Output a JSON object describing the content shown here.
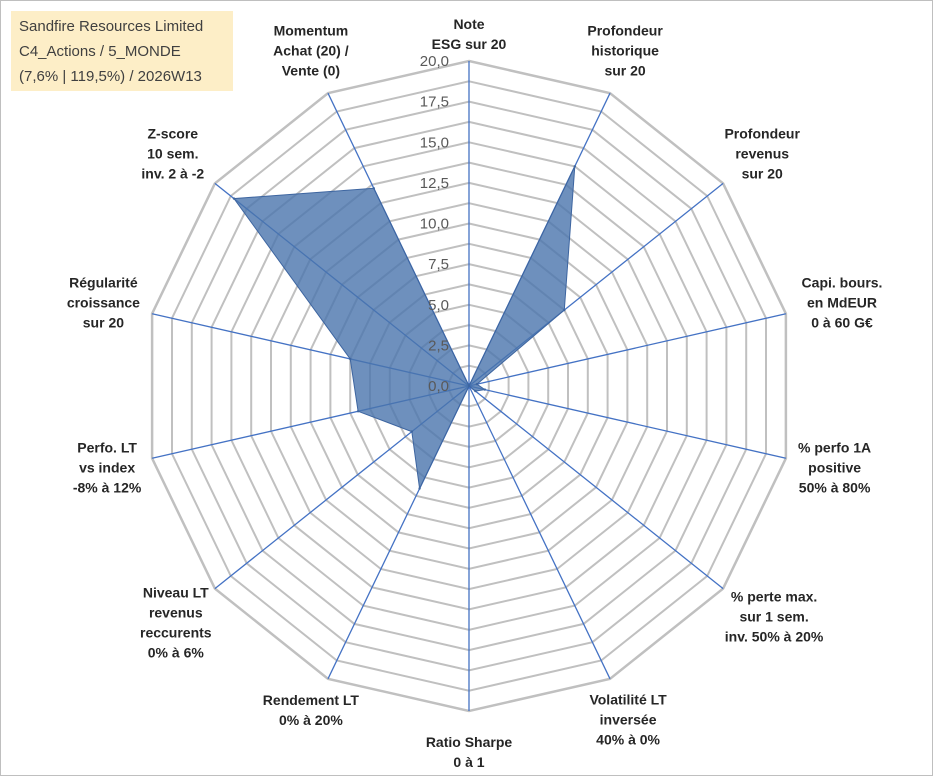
{
  "title_box": {
    "line1": "Sandfire Resources Limited",
    "line2": "C4_Actions / 5_MONDE",
    "line3": "(7,6% | 119,5%) / 2026W13"
  },
  "colors": {
    "grid": "#c0c0c0",
    "spoke": "#4472c4",
    "fill": "#4a74ac",
    "fill_opacity": "0.8",
    "border": "#3d65a0"
  },
  "chart_data": {
    "type": "radar",
    "title": "Sandfire Resources Limited",
    "r_range": [
      0,
      20
    ],
    "r_ticks": [
      "0,0",
      "2,5",
      "5,0",
      "7,5",
      "10,0",
      "12,5",
      "15,0",
      "17,5",
      "20,0"
    ],
    "axes": [
      [
        "Note",
        "ESG sur 20"
      ],
      [
        "Profondeur",
        "historique",
        "sur 20"
      ],
      [
        "Profondeur",
        "revenus",
        "sur 20"
      ],
      [
        "Capi. bours.",
        "en MdEUR",
        "0 à 60 G€"
      ],
      [
        "% perfo 1A",
        "positive",
        "50% à 80%"
      ],
      [
        "% perte max.",
        "sur 1 sem.",
        "inv. 50% à 20%"
      ],
      [
        "Volatilité LT",
        "inversée",
        "40% à 0%"
      ],
      [
        "Ratio Sharpe",
        "0 à 1"
      ],
      [
        "Rendement LT",
        "0% à 20%"
      ],
      [
        "Niveau LT",
        "revenus",
        "reccurents",
        "0% à 6%"
      ],
      [
        "Perfo. LT",
        "vs index",
        "-8% à 12%"
      ],
      [
        "Régularité",
        "croissance",
        "sur 20"
      ],
      [
        "Z-score",
        "10 sem.",
        "inv. 2 à -2"
      ],
      [
        "Momentum",
        "Achat (20) /",
        "Vente (0)"
      ]
    ],
    "series": [
      {
        "name": "Sandfire Resources Limited",
        "values": [
          0.0,
          15.0,
          7.5,
          0.5,
          1.0,
          0.5,
          0.0,
          0.0,
          7.0,
          4.5,
          7.0,
          7.5,
          18.5,
          13.5
        ]
      }
    ],
    "legend": "none",
    "grid": true
  }
}
